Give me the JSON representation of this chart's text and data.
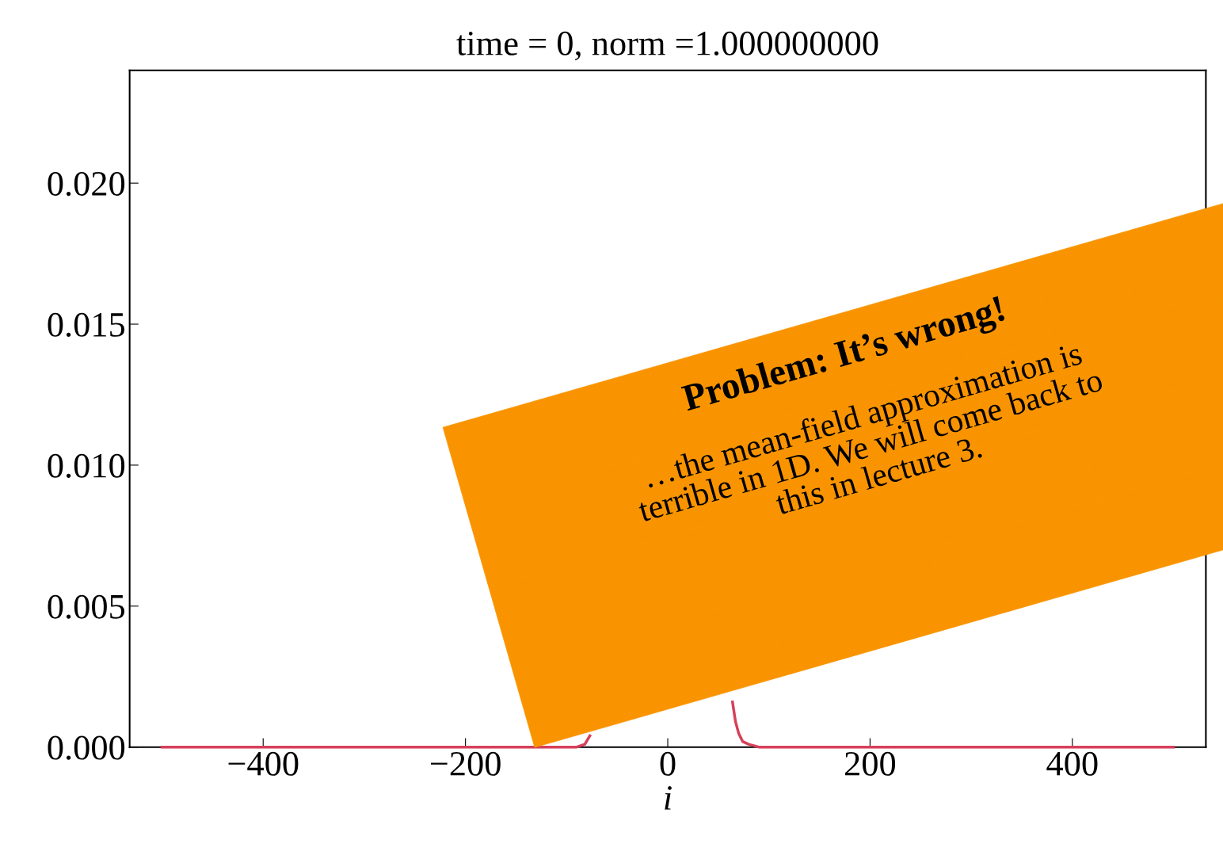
{
  "chart_data": {
    "type": "line",
    "title": "time = 0, norm =1.000000000",
    "xlabel": "i",
    "series": [
      {
        "color": "#d6405a",
        "x": [
          -500,
          -200,
          -90,
          -82,
          -77,
          -73,
          -70,
          -60,
          0,
          55,
          58,
          61,
          64,
          67,
          70,
          74,
          80,
          90,
          200,
          500
        ],
        "values": [
          0,
          0,
          0,
          0.0001,
          0.0004,
          null,
          null,
          null,
          null,
          null,
          null,
          null,
          0.0016,
          0.0009,
          0.0005,
          0.0002,
          0.0001,
          0,
          0,
          0
        ]
      }
    ],
    "xlim": [
      -532,
      532
    ],
    "ylim": [
      0,
      0.024
    ],
    "xticks": [
      {
        "value": -400,
        "label": "−400"
      },
      {
        "value": -200,
        "label": "−200"
      },
      0,
      200,
      400
    ],
    "yticks": [
      {
        "value": 0,
        "label": "0.000"
      },
      {
        "value": 0.005,
        "label": "0.005"
      },
      {
        "value": 0.01,
        "label": "0.010"
      },
      {
        "value": 0.015,
        "label": "0.015"
      },
      {
        "value": 0.02,
        "label": "0.020"
      }
    ],
    "grid": false,
    "legend": false,
    "marker": "none",
    "line_style": "solid",
    "annotations": [
      "Problem: It’s wrong!",
      "…the mean-field approximation is\nterrible in 1D. We will come back to\nthis in lecture 3."
    ]
  }
}
